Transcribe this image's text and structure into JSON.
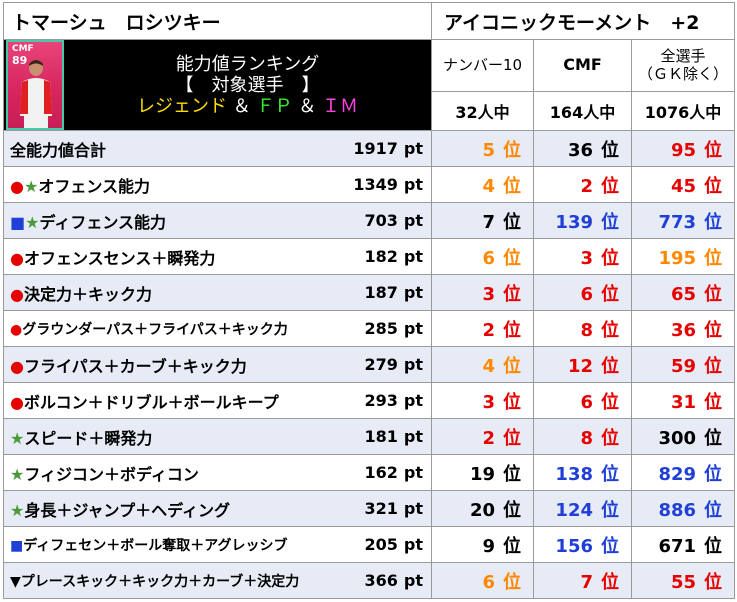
{
  "header": {
    "player_name": "トマーシュ　ロシツキー",
    "card_title": "アイコニックモーメント　+2"
  },
  "player_card": {
    "position": "CMF",
    "rating": "89"
  },
  "ranking_info": {
    "line1": "能力値ランキング",
    "line2": "【　対象選手　】",
    "line3_parts": [
      "レジェンド",
      "＆",
      "ＦＰ",
      "＆",
      "ＩＭ"
    ]
  },
  "columns": [
    {
      "label": "ナンバー10",
      "count": "32人中"
    },
    {
      "label": "CMF",
      "count": "164人中"
    },
    {
      "label": "全選手\n（ＧＫ除く）",
      "count": "1076人中"
    }
  ],
  "unit_pt": "pt",
  "unit_rank": "位",
  "colors": {
    "red": "#e60000",
    "orange": "#ff8800",
    "blue": "#1f3fd6",
    "black": "#000000",
    "green": "#4a9a3a",
    "row_alt": "#e6ebf5"
  },
  "rows": [
    {
      "label": "全能力値合計",
      "markers": [],
      "pt": "1917",
      "ranks": [
        {
          "v": "5",
          "c": "orange"
        },
        {
          "v": "36",
          "c": "black"
        },
        {
          "v": "95",
          "c": "red"
        }
      ]
    },
    {
      "label": "オフェンス能力",
      "markers": [
        {
          "s": "●",
          "c": "red"
        },
        {
          "s": "★",
          "c": "green"
        }
      ],
      "pt": "1349",
      "ranks": [
        {
          "v": "4",
          "c": "orange"
        },
        {
          "v": "2",
          "c": "red"
        },
        {
          "v": "45",
          "c": "red"
        }
      ]
    },
    {
      "label": "ディフェンス能力",
      "markers": [
        {
          "s": "■",
          "c": "blue"
        },
        {
          "s": "★",
          "c": "green"
        }
      ],
      "pt": "703",
      "ranks": [
        {
          "v": "7",
          "c": "black"
        },
        {
          "v": "139",
          "c": "blue"
        },
        {
          "v": "773",
          "c": "blue"
        }
      ]
    },
    {
      "label": "オフェンスセンス＋瞬発力",
      "markers": [
        {
          "s": "●",
          "c": "red"
        }
      ],
      "pt": "182",
      "ranks": [
        {
          "v": "6",
          "c": "orange"
        },
        {
          "v": "3",
          "c": "red"
        },
        {
          "v": "195",
          "c": "orange"
        }
      ]
    },
    {
      "label": "決定力＋キック力",
      "markers": [
        {
          "s": "●",
          "c": "red"
        }
      ],
      "pt": "187",
      "ranks": [
        {
          "v": "3",
          "c": "red"
        },
        {
          "v": "6",
          "c": "red"
        },
        {
          "v": "65",
          "c": "red"
        }
      ]
    },
    {
      "label": "グラウンダーパス＋フライパス＋キック力",
      "markers": [
        {
          "s": "●",
          "c": "red"
        }
      ],
      "small": true,
      "pt": "285",
      "ranks": [
        {
          "v": "2",
          "c": "red"
        },
        {
          "v": "8",
          "c": "red"
        },
        {
          "v": "36",
          "c": "red"
        }
      ]
    },
    {
      "label": "フライパス＋カーブ＋キック力",
      "markers": [
        {
          "s": "●",
          "c": "red"
        }
      ],
      "pt": "279",
      "ranks": [
        {
          "v": "4",
          "c": "orange"
        },
        {
          "v": "12",
          "c": "red"
        },
        {
          "v": "59",
          "c": "red"
        }
      ]
    },
    {
      "label": "ボルコン＋ドリブル＋ボールキープ",
      "markers": [
        {
          "s": "●",
          "c": "red"
        }
      ],
      "pt": "293",
      "ranks": [
        {
          "v": "3",
          "c": "red"
        },
        {
          "v": "6",
          "c": "red"
        },
        {
          "v": "31",
          "c": "red"
        }
      ]
    },
    {
      "label": "スピード＋瞬発力",
      "markers": [
        {
          "s": "★",
          "c": "green"
        }
      ],
      "pt": "181",
      "ranks": [
        {
          "v": "2",
          "c": "red"
        },
        {
          "v": "8",
          "c": "red"
        },
        {
          "v": "300",
          "c": "black"
        }
      ]
    },
    {
      "label": "フィジコン＋ボディコン",
      "markers": [
        {
          "s": "★",
          "c": "green"
        }
      ],
      "pt": "162",
      "ranks": [
        {
          "v": "19",
          "c": "black"
        },
        {
          "v": "138",
          "c": "blue"
        },
        {
          "v": "829",
          "c": "blue"
        }
      ]
    },
    {
      "label": "身長＋ジャンプ＋ヘディング",
      "markers": [
        {
          "s": "★",
          "c": "green"
        }
      ],
      "pt": "321",
      "ranks": [
        {
          "v": "20",
          "c": "black"
        },
        {
          "v": "124",
          "c": "blue"
        },
        {
          "v": "886",
          "c": "blue"
        }
      ]
    },
    {
      "label": "ディフェセン＋ボール奪取＋アグレッシブ",
      "markers": [
        {
          "s": "■",
          "c": "blue"
        }
      ],
      "small": true,
      "pt": "205",
      "ranks": [
        {
          "v": "9",
          "c": "black"
        },
        {
          "v": "156",
          "c": "blue"
        },
        {
          "v": "671",
          "c": "black"
        }
      ]
    },
    {
      "label": "プレースキック＋キック力＋カーブ＋決定力",
      "markers": [
        {
          "s": "▼",
          "c": "black"
        }
      ],
      "small": true,
      "pt": "366",
      "ranks": [
        {
          "v": "6",
          "c": "orange"
        },
        {
          "v": "7",
          "c": "red"
        },
        {
          "v": "55",
          "c": "red"
        }
      ]
    }
  ]
}
